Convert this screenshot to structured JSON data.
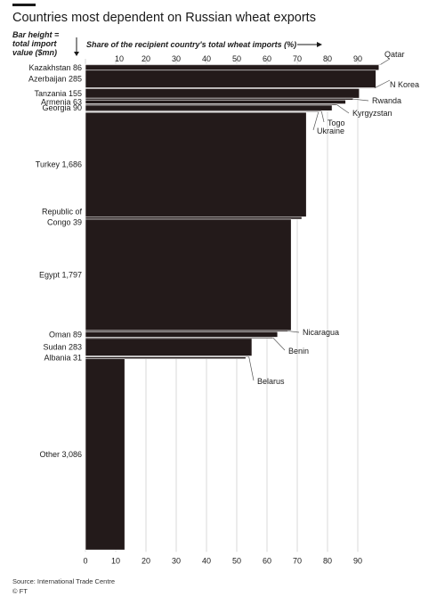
{
  "chart_data": {
    "type": "bar",
    "title": "Countries most dependent on Russian wheat exports",
    "ylabel": "Bar height = total import value ($mn)",
    "xlabel": "Share of the recipient country's total wheat imports (%)",
    "xlim": [
      0,
      100
    ],
    "xticks": [
      0,
      10,
      20,
      30,
      40,
      50,
      60,
      70,
      80,
      90
    ],
    "source": "Source: International Trade Centre",
    "credit": "© FT",
    "bar_color": "#231a1a",
    "grid_color": "#d9d9d9",
    "bars": [
      {
        "name": "Qatar",
        "import_value": 6,
        "share": 97.5,
        "label": "Qatar"
      },
      {
        "name": "Kazakhstan",
        "import_value": 86,
        "share": 97,
        "label": "Kazakhstan 86"
      },
      {
        "name": "Azerbaijan",
        "import_value": 285,
        "share": 96,
        "label": "Azerbaijan 285"
      },
      {
        "name": "N Korea",
        "import_value": 6,
        "share": 95.5,
        "label": "N Korea"
      },
      {
        "name": "Tanzania",
        "import_value": 155,
        "share": 90.5,
        "label": "Tanzania 155"
      },
      {
        "name": "Rwanda",
        "import_value": 30,
        "share": 88.5,
        "label": "Rwanda"
      },
      {
        "name": "Armenia",
        "import_value": 63,
        "share": 86,
        "label": "Armenia 63"
      },
      {
        "name": "Kyrgyzstan",
        "import_value": 20,
        "share": 83,
        "label": "Kyrgyzstan"
      },
      {
        "name": "Georgia",
        "import_value": 90,
        "share": 81.5,
        "label": "Georgia 90"
      },
      {
        "name": "Togo",
        "import_value": 15,
        "share": 78,
        "label": "Togo"
      },
      {
        "name": "Ukraine",
        "import_value": 10,
        "share": 77,
        "label": "Ukraine"
      },
      {
        "name": "Turkey",
        "import_value": 1686,
        "share": 73,
        "label": "Turkey 1,686"
      },
      {
        "name": "Republic of Congo",
        "import_value": 39,
        "share": 71.5,
        "label": "Republic of Congo 39"
      },
      {
        "name": "Egypt",
        "import_value": 1797,
        "share": 68,
        "label": "Egypt 1,797"
      },
      {
        "name": "Nicaragua",
        "import_value": 20,
        "share": 67,
        "label": "Nicaragua"
      },
      {
        "name": "Oman",
        "import_value": 89,
        "share": 63.5,
        "label": "Oman 89"
      },
      {
        "name": "Benin",
        "import_value": 20,
        "share": 62,
        "label": "Benin"
      },
      {
        "name": "Sudan",
        "import_value": 283,
        "share": 55,
        "label": "Sudan 283"
      },
      {
        "name": "Belarus",
        "import_value": 15,
        "share": 54,
        "label": "Belarus"
      },
      {
        "name": "Albania",
        "import_value": 31,
        "share": 53,
        "label": "Albania 31"
      },
      {
        "name": "Other",
        "import_value": 3086,
        "share": 13,
        "label": "Other 3,086"
      }
    ]
  }
}
